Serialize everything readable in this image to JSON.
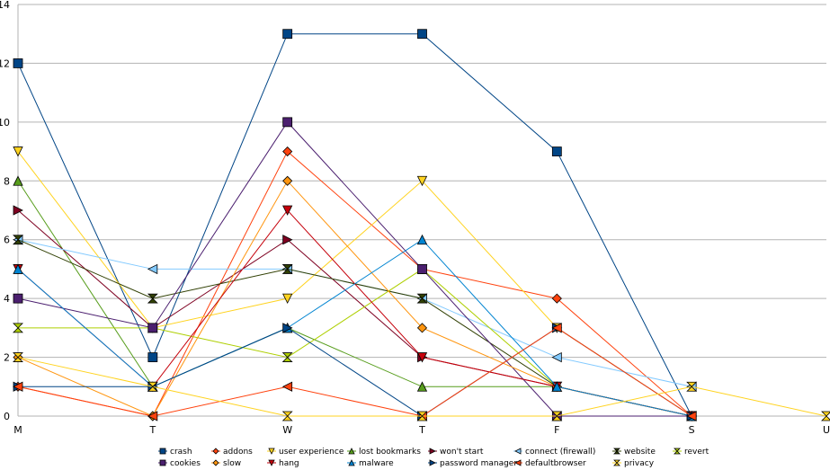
{
  "chart_data": {
    "type": "line",
    "title": "",
    "xlabel": "",
    "ylabel": "",
    "categories": [
      "M",
      "T",
      "W",
      "T",
      "F",
      "S",
      "U"
    ],
    "ylim": [
      0,
      14
    ],
    "yticks": [
      0,
      2,
      4,
      6,
      8,
      10,
      12,
      14
    ],
    "grid": true,
    "legend_position": "bottom",
    "series": [
      {
        "name": "crash",
        "color": "#004586",
        "marker": "square",
        "values": [
          12,
          2,
          13,
          13,
          9,
          0,
          null
        ]
      },
      {
        "name": "addons",
        "color": "#ff420e",
        "marker": "diamond",
        "values": [
          1,
          0,
          9,
          5,
          4,
          0,
          null
        ]
      },
      {
        "name": "user experience",
        "color": "#ffd320",
        "marker": "triangle-down",
        "values": [
          9,
          3,
          4,
          8,
          3,
          0,
          null
        ]
      },
      {
        "name": "lost bookmarks",
        "color": "#579d1c",
        "marker": "triangle-up",
        "values": [
          8,
          1,
          3,
          1,
          1,
          0,
          null
        ]
      },
      {
        "name": "won't start",
        "color": "#7e0021",
        "marker": "triangle-right",
        "values": [
          7,
          3,
          6,
          2,
          1,
          0,
          null
        ]
      },
      {
        "name": "connect (firewall)",
        "color": "#83caff",
        "marker": "triangle-left",
        "values": [
          6,
          5,
          5,
          4,
          2,
          1,
          null
        ]
      },
      {
        "name": "website",
        "color": "#314004",
        "marker": "bowtie",
        "values": [
          6,
          4,
          5,
          4,
          1,
          0,
          null
        ]
      },
      {
        "name": "revert",
        "color": "#aecf00",
        "marker": "hourglass",
        "values": [
          3,
          3,
          2,
          5,
          1,
          0,
          null
        ]
      },
      {
        "name": "cookies",
        "color": "#4b1f6f",
        "marker": "square",
        "values": [
          4,
          3,
          10,
          5,
          0,
          0,
          null
        ]
      },
      {
        "name": "slow",
        "color": "#ff950e",
        "marker": "diamond",
        "values": [
          2,
          0,
          8,
          3,
          1,
          0,
          null
        ]
      },
      {
        "name": "hang",
        "color": "#c5000b",
        "marker": "triangle-down",
        "values": [
          5,
          1,
          7,
          2,
          1,
          0,
          null
        ]
      },
      {
        "name": "malware",
        "color": "#0084d1",
        "marker": "triangle-up",
        "values": [
          5,
          1,
          3,
          6,
          1,
          0,
          null
        ]
      },
      {
        "name": "password manager",
        "color": "#004586",
        "marker": "triangle-right",
        "values": [
          1,
          1,
          3,
          0,
          3,
          0,
          null
        ]
      },
      {
        "name": "defaultbrowser",
        "color": "#ff420e",
        "marker": "triangle-left",
        "values": [
          1,
          0,
          1,
          0,
          3,
          0,
          null
        ]
      },
      {
        "name": "privacy",
        "color": "#ffd320",
        "marker": "bowtie",
        "values": [
          2,
          1,
          0,
          0,
          0,
          1,
          0
        ]
      }
    ]
  }
}
